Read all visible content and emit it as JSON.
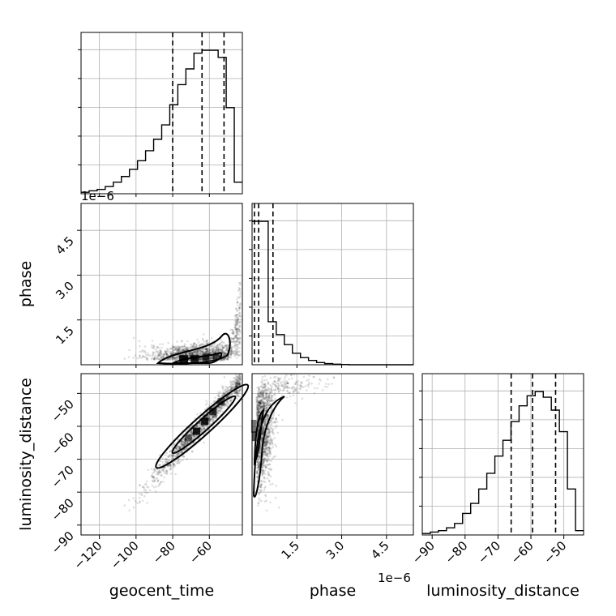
{
  "chart_data": {
    "type": "corner",
    "parameters": [
      "geocent_time",
      "phase",
      "luminosity_distance"
    ],
    "axis_offset_text": "1e−6",
    "axes": {
      "geocent_time": {
        "range": [
          -130,
          -42
        ],
        "ticks": [
          -120,
          -100,
          -80,
          -60
        ],
        "tick_labels": [
          "−120",
          "−100",
          "−80",
          "−60"
        ]
      },
      "phase": {
        "range": [
          0,
          5.4
        ],
        "ticks": [
          1.5,
          3.0,
          4.5
        ],
        "tick_labels": [
          "1.5",
          "3.0",
          "4.5"
        ]
      },
      "luminosity_distance": {
        "range": [
          -93,
          -44
        ],
        "ticks": [
          -90,
          -80,
          -70,
          -60,
          -50
        ],
        "tick_labels": [
          "−90",
          "−80",
          "−70",
          "−60",
          "−50"
        ]
      }
    },
    "histograms": {
      "geocent_time": {
        "edges": [
          -130,
          -125.6,
          -121.2,
          -116.8,
          -112.4,
          -108,
          -103.6,
          -99.2,
          -94.8,
          -90.4,
          -86,
          -81.6,
          -77.2,
          -72.8,
          -68.4,
          -64,
          -59.6,
          -55.2,
          -50.8,
          -46.4,
          -42
        ],
        "counts": [
          0.01,
          0.02,
          0.03,
          0.05,
          0.08,
          0.12,
          0.17,
          0.23,
          0.3,
          0.38,
          0.48,
          0.62,
          0.76,
          0.87,
          0.98,
          1.0,
          1.0,
          0.95,
          0.6,
          0.08
        ],
        "quantiles": [
          -80,
          -64,
          -52
        ]
      },
      "phase": {
        "edges": [
          0,
          0.27,
          0.54,
          0.81,
          1.08,
          1.35,
          1.62,
          1.89,
          2.16,
          2.43,
          2.7,
          2.97,
          3.24,
          3.51,
          3.78,
          4.05,
          4.32,
          4.59,
          4.86,
          5.13,
          5.4
        ],
        "counts": [
          1.0,
          1.0,
          0.3,
          0.21,
          0.14,
          0.08,
          0.05,
          0.03,
          0.015,
          0.008,
          0.004,
          0.002,
          0,
          0,
          0,
          0,
          0,
          0,
          0,
          0
        ],
        "quantiles": [
          0.08,
          0.22,
          0.7
        ]
      },
      "luminosity_distance": {
        "edges": [
          -93,
          -90.55,
          -88.1,
          -85.65,
          -83.2,
          -80.75,
          -78.3,
          -75.85,
          -73.4,
          -70.95,
          -68.5,
          -66.05,
          -63.6,
          -61.15,
          -58.7,
          -56.25,
          -53.8,
          -51.35,
          -48.9,
          -46.45,
          -44
        ],
        "counts": [
          0.01,
          0.02,
          0.03,
          0.05,
          0.08,
          0.15,
          0.22,
          0.32,
          0.43,
          0.55,
          0.66,
          0.79,
          0.9,
          0.97,
          1.0,
          0.96,
          0.87,
          0.72,
          0.32,
          0.03
        ],
        "quantiles": [
          -66,
          -59.5,
          -52.5
        ]
      }
    },
    "grid": true
  }
}
